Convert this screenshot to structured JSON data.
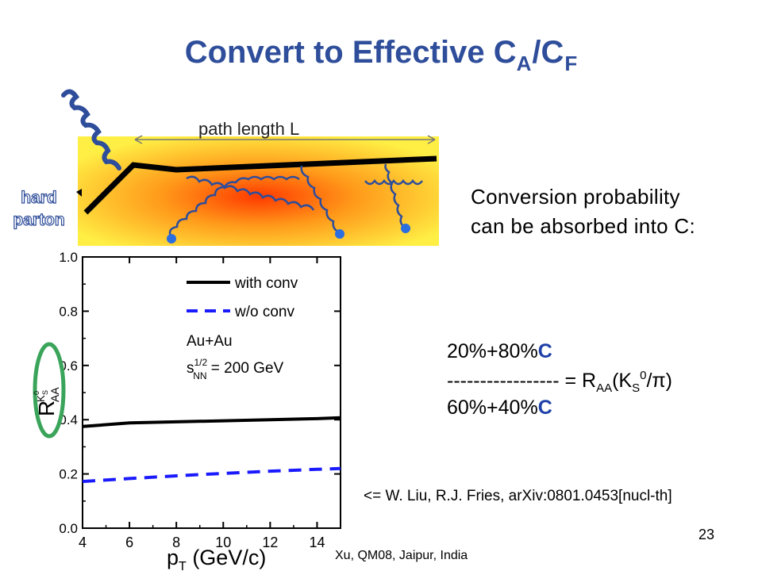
{
  "slide": {
    "title": {
      "main": "Convert to Effective C",
      "sub_a": "A",
      "slash": "/C",
      "sub_f": "F"
    },
    "diagram": {
      "path_label": "path length L",
      "hard_label_1": "hard",
      "hard_label_2": "parton"
    },
    "conversion_text": {
      "line1": "Conversion probability",
      "line2": "can be absorbed into C:"
    },
    "formula": {
      "numerator_prefix": "20%+80%",
      "numerator_c": "C",
      "dashes": "-----------------",
      "equals": " = R",
      "sub_aa": "AA",
      "paren_open": "(K",
      "sub_s": "S",
      "sup_0": "0",
      "slash_pi": "/π)",
      "denominator_prefix": "60%+40%",
      "denominator_c": "C"
    },
    "citation": "<= W. Liu, R.J. Fries, arXiv:0801.0453[nucl-th]",
    "slide_number": "23",
    "footer": "Xu, QM08, Jaipur, India",
    "colors": {
      "title": "#2e4d9a",
      "with_conv": "#000000",
      "wo_conv": "#1a1aff",
      "highlight_ring": "#3aa45a"
    }
  },
  "chart_data": {
    "type": "line",
    "x": [
      4,
      6,
      8,
      10,
      12,
      14,
      15
    ],
    "series": [
      {
        "name": "with conv",
        "values": [
          0.375,
          0.388,
          0.392,
          0.396,
          0.4,
          0.404,
          0.407
        ]
      },
      {
        "name": "w/o conv",
        "values": [
          0.172,
          0.183,
          0.193,
          0.202,
          0.21,
          0.217,
          0.22
        ]
      }
    ],
    "xlim": [
      4,
      15
    ],
    "ylim": [
      0.0,
      1.0
    ],
    "x_ticks": [
      4,
      6,
      8,
      10,
      12,
      14
    ],
    "x_tick_labels": [
      "4",
      "6",
      "8",
      "10",
      "12",
      "14"
    ],
    "y_ticks": [
      0.0,
      0.2,
      0.4,
      0.6,
      0.8,
      1.0
    ],
    "y_tick_labels": [
      "0.0",
      "0.2",
      "0.4",
      "0.6",
      "0.8",
      "1.0"
    ],
    "xlabel": "p",
    "xlabel_sub": "T",
    "xlabel_unit": " (GeV/c)",
    "ylabel": "R",
    "ylabel_sup": "K",
    "ylabel_sup_sub": "S",
    "ylabel_sup_zero": "0",
    "ylabel_sub": "AA",
    "legend_line1": "Au+Au",
    "legend_line2_a": "s",
    "legend_line2_sup": "1/2",
    "legend_line2_sub": "NN",
    "legend_line2_b": " = 200 GeV",
    "legend_position": "top-right",
    "grid": false
  }
}
